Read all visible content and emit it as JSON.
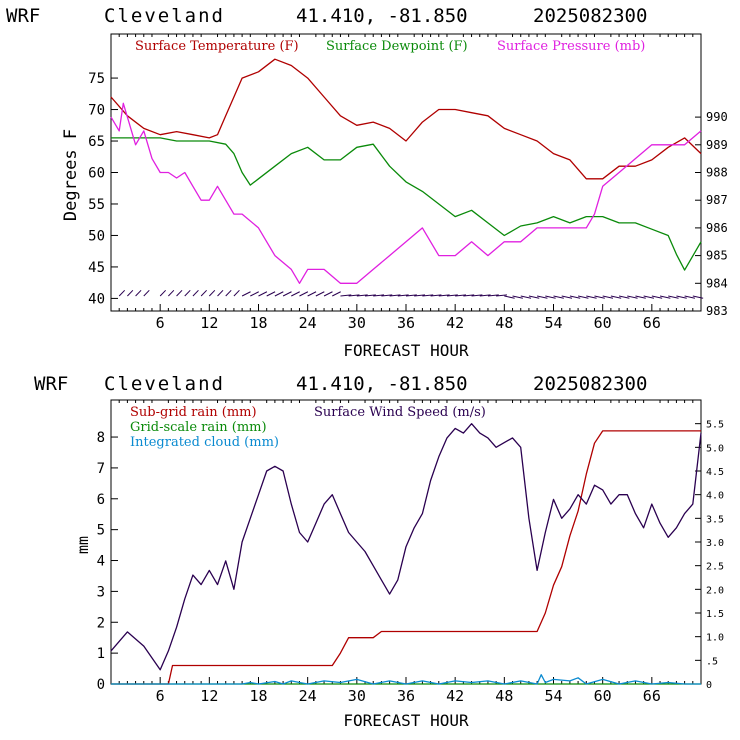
{
  "colors": {
    "temperature": "#b00000",
    "dewpoint": "#0a8a0a",
    "pressure": "#e020e0",
    "subgrid_rain": "#b00000",
    "gridscale_rain": "#0a8a0a",
    "cloud": "#0a8ad0",
    "wind": "#2a0050",
    "axis": "#000000"
  },
  "chart_data": [
    {
      "type": "line",
      "header": {
        "model": "WRF",
        "station": "Cleveland",
        "coords": "41.410, -81.850",
        "run": "2025082300"
      },
      "xlabel": "FORECAST HOUR",
      "ylabel": "Degrees F",
      "xlim": [
        0,
        72
      ],
      "ylim_left": [
        38,
        82
      ],
      "ylim_right": [
        983,
        993
      ],
      "xticks": [
        "6",
        "12",
        "18",
        "24",
        "30",
        "36",
        "42",
        "48",
        "54",
        "60",
        "66"
      ],
      "yticks_left": [
        "40",
        "45",
        "50",
        "55",
        "60",
        "65",
        "70",
        "75"
      ],
      "yticks_right": [
        "983",
        "984",
        "985",
        "986",
        "987",
        "988",
        "989",
        "990"
      ],
      "legend": [
        "Surface Temperature (F)",
        "Surface Dewpoint (F)",
        "Surface Pressure (mb)"
      ],
      "series": [
        {
          "name": "Surface Temperature (F)",
          "axis": "left",
          "x": [
            0,
            2,
            4,
            6,
            8,
            10,
            12,
            13,
            14,
            15,
            16,
            18,
            20,
            22,
            24,
            26,
            28,
            30,
            32,
            34,
            36,
            38,
            40,
            42,
            44,
            46,
            48,
            50,
            52,
            54,
            56,
            58,
            60,
            62,
            64,
            66,
            68,
            70,
            72
          ],
          "y": [
            72,
            69,
            67,
            66,
            66.5,
            66,
            65.5,
            66,
            69,
            72,
            75,
            76,
            78,
            77,
            75,
            72,
            69,
            67.5,
            68,
            67,
            65,
            68,
            70,
            70,
            69.5,
            69,
            67,
            66,
            65,
            63,
            62,
            59,
            59,
            61,
            61,
            62,
            64,
            65.5,
            63
          ]
        },
        {
          "name": "Surface Dewpoint (F)",
          "axis": "left",
          "x": [
            0,
            2,
            4,
            6,
            8,
            10,
            12,
            14,
            15,
            16,
            17,
            18,
            20,
            22,
            24,
            26,
            28,
            30,
            32,
            34,
            36,
            38,
            40,
            42,
            44,
            46,
            48,
            50,
            52,
            54,
            56,
            58,
            60,
            62,
            64,
            66,
            68,
            69,
            70,
            72
          ],
          "y": [
            65.5,
            65.5,
            65.5,
            65.5,
            65,
            65,
            65,
            64.5,
            63,
            60,
            58,
            59,
            61,
            63,
            64,
            62,
            62,
            64,
            64.5,
            61,
            58.5,
            57,
            55,
            53,
            54,
            52,
            50,
            51.5,
            52,
            53,
            52,
            53,
            53,
            52,
            52,
            51,
            50,
            47,
            44.5,
            49
          ]
        },
        {
          "name": "Surface Pressure (mb)",
          "axis": "right",
          "x": [
            0,
            1,
            1.5,
            2,
            3,
            4,
            5,
            6,
            7,
            8,
            9,
            10,
            11,
            12,
            13,
            14,
            15,
            16,
            18,
            20,
            22,
            23,
            24,
            26,
            28,
            30,
            32,
            34,
            36,
            38,
            40,
            42,
            44,
            46,
            48,
            50,
            52,
            54,
            56,
            58,
            59,
            60,
            62,
            64,
            66,
            68,
            70,
            72
          ],
          "y": [
            990,
            989.5,
            990.5,
            990,
            989,
            989.5,
            988.5,
            988,
            988,
            987.8,
            988,
            987.5,
            987,
            987,
            987.5,
            987,
            986.5,
            986.5,
            986,
            985,
            984.5,
            984,
            984.5,
            984.5,
            984,
            984,
            984.5,
            985,
            985.5,
            986,
            985,
            985,
            985.5,
            985,
            985.5,
            985.5,
            986,
            986,
            986,
            986,
            986.5,
            987.5,
            988,
            988.5,
            989,
            989,
            989,
            989.5
          ]
        }
      ],
      "wind_barbs": "row of wind barbs near 40 °F along the bottom of the plot"
    },
    {
      "type": "line",
      "header": {
        "model": "WRF",
        "station": "Cleveland",
        "coords": "41.410, -81.850",
        "run": "2025082300"
      },
      "xlabel": "FORECAST HOUR",
      "ylabel": "mm",
      "xlim": [
        0,
        72
      ],
      "ylim_left": [
        0,
        9.2
      ],
      "ylim_right": [
        0,
        6.0
      ],
      "xticks": [
        "6",
        "12",
        "18",
        "24",
        "30",
        "36",
        "42",
        "48",
        "54",
        "60",
        "66"
      ],
      "yticks_left": [
        "0",
        "1",
        "2",
        "3",
        "4",
        "5",
        "6",
        "7",
        "8"
      ],
      "yticks_right": [
        "0",
        ".5",
        "1.0",
        "1.5",
        "2.0",
        "2.5",
        "3.0",
        "3.5",
        "4.0",
        "4.5",
        "5.0",
        "5.5"
      ],
      "legend": [
        "Sub-grid rain (mm)",
        "Grid-scale rain (mm)",
        "Integrated cloud (mm)",
        "Surface Wind Speed (m/s)"
      ],
      "series": [
        {
          "name": "Sub-grid rain (mm)",
          "axis": "left",
          "x": [
            0,
            7,
            7.5,
            27,
            28,
            29,
            32,
            33,
            52,
            53,
            54,
            55,
            56,
            57,
            58,
            59,
            60,
            72
          ],
          "y": [
            0,
            0,
            0.6,
            0.6,
            1.0,
            1.5,
            1.5,
            1.7,
            1.7,
            2.3,
            3.2,
            3.8,
            4.8,
            5.6,
            6.8,
            7.8,
            8.2,
            8.2
          ]
        },
        {
          "name": "Grid-scale rain (mm)",
          "axis": "left",
          "x": [
            0,
            72
          ],
          "y": [
            0,
            0
          ]
        },
        {
          "name": "Integrated cloud (mm)",
          "axis": "left",
          "x": [
            0,
            16,
            17,
            18,
            20,
            21,
            22,
            23,
            24,
            26,
            28,
            30,
            32,
            34,
            36,
            38,
            40,
            42,
            44,
            46,
            48,
            50,
            52,
            52.5,
            53,
            54,
            56,
            57,
            58,
            60,
            62,
            64,
            66,
            68,
            70,
            72
          ],
          "y": [
            0,
            0,
            0.05,
            0,
            0.08,
            0,
            0.1,
            0.05,
            0,
            0.1,
            0.05,
            0.15,
            0,
            0.1,
            0,
            0.1,
            0,
            0.1,
            0.05,
            0.1,
            0,
            0.1,
            0,
            0.3,
            0.05,
            0.15,
            0.1,
            0.2,
            0,
            0.15,
            0,
            0.1,
            0,
            0.05,
            0,
            0
          ]
        },
        {
          "name": "Surface Wind Speed (m/s)",
          "axis": "right",
          "x": [
            0,
            2,
            4,
            6,
            7,
            8,
            9,
            10,
            11,
            12,
            13,
            14,
            15,
            16,
            17,
            18,
            19,
            20,
            21,
            22,
            23,
            24,
            25,
            26,
            27,
            28,
            29,
            30,
            31,
            32,
            33,
            34,
            35,
            36,
            37,
            38,
            39,
            40,
            41,
            42,
            43,
            44,
            45,
            46,
            47,
            48,
            49,
            50,
            51,
            52,
            53,
            54,
            55,
            56,
            57,
            58,
            59,
            60,
            61,
            62,
            63,
            64,
            65,
            66,
            67,
            68,
            69,
            70,
            71,
            72
          ],
          "y": [
            0.7,
            1.1,
            0.8,
            0.3,
            0.7,
            1.2,
            1.8,
            2.3,
            2.1,
            2.4,
            2.1,
            2.6,
            2.0,
            3.0,
            3.5,
            4.0,
            4.5,
            4.6,
            4.5,
            3.8,
            3.2,
            3.0,
            3.4,
            3.8,
            4.0,
            3.6,
            3.2,
            3.0,
            2.8,
            2.5,
            2.2,
            1.9,
            2.2,
            2.9,
            3.3,
            3.6,
            4.3,
            4.8,
            5.2,
            5.4,
            5.3,
            5.5,
            5.3,
            5.2,
            5.0,
            5.1,
            5.2,
            5.0,
            3.5,
            2.4,
            3.2,
            3.9,
            3.5,
            3.7,
            4.0,
            3.8,
            4.2,
            4.1,
            3.8,
            4.0,
            4.0,
            3.6,
            3.3,
            3.8,
            3.4,
            3.1,
            3.3,
            3.6,
            3.8,
            5.3
          ]
        }
      ]
    }
  ]
}
